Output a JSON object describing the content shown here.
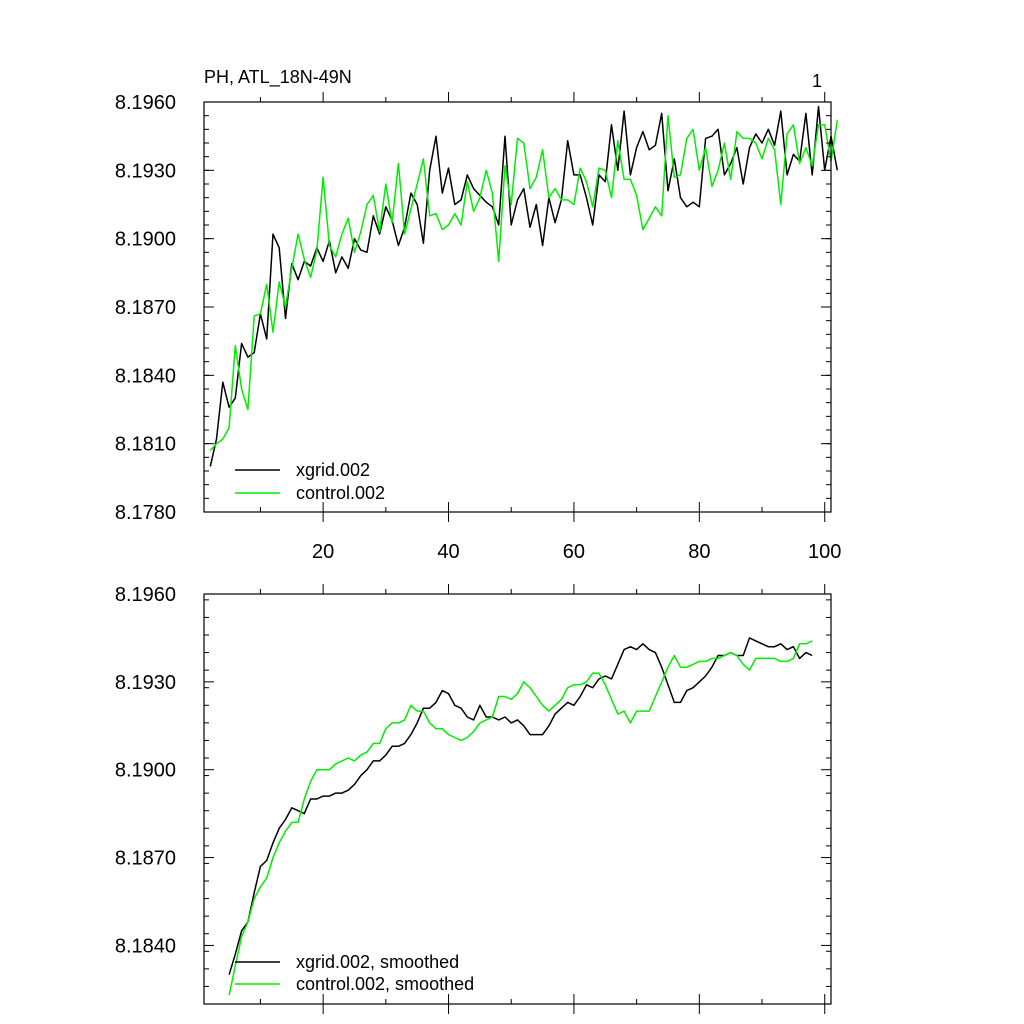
{
  "colors": {
    "series_black": "#000000",
    "series_green": "#00ee00",
    "frame": "#000000"
  },
  "chart_data": [
    {
      "type": "line",
      "title_left": "PH, ATL_18N-49N",
      "title_right": "1",
      "xlabel": "",
      "ylabel": "",
      "xlim": [
        1,
        101
      ],
      "ylim": [
        8.178,
        8.196
      ],
      "xticks": [
        20,
        40,
        60,
        80,
        100
      ],
      "xtick_labels": [
        "20",
        "40",
        "60",
        "80",
        "100"
      ],
      "yticks": [
        8.178,
        8.181,
        8.184,
        8.187,
        8.19,
        8.193,
        8.196
      ],
      "ytick_labels": [
        "8.1780",
        "8.1810",
        "8.1840",
        "8.1870",
        "8.1900",
        "8.1930",
        "8.1960"
      ],
      "grid": false,
      "legend_position": "bottom-left",
      "x_start": 2,
      "series": [
        {
          "name": "xgrid.002",
          "color": "#000000",
          "values": [
            8.18,
            8.1812,
            8.1837,
            8.1826,
            8.183,
            8.1854,
            8.1848,
            8.185,
            8.1867,
            8.1856,
            8.1902,
            8.1896,
            8.1865,
            8.1889,
            8.1882,
            8.189,
            8.1888,
            8.1896,
            8.189,
            8.1899,
            8.1885,
            8.1892,
            8.1887,
            8.19,
            8.1895,
            8.1894,
            8.191,
            8.1902,
            8.1914,
            8.1908,
            8.1897,
            8.1905,
            8.192,
            8.1915,
            8.1898,
            8.193,
            8.1945,
            8.192,
            8.1931,
            8.1915,
            8.1917,
            8.1928,
            8.1922,
            8.1919,
            8.1916,
            8.1914,
            8.1906,
            8.1945,
            8.1906,
            8.1917,
            8.1922,
            8.1905,
            8.1915,
            8.1897,
            8.1918,
            8.1907,
            8.1917,
            8.1943,
            8.1928,
            8.1928,
            8.1918,
            8.1906,
            8.1928,
            8.1925,
            8.195,
            8.193,
            8.1956,
            8.1928,
            8.194,
            8.1947,
            8.1939,
            8.1941,
            8.1955,
            8.1921,
            8.1935,
            8.1918,
            8.1914,
            8.1916,
            8.1914,
            8.1944,
            8.1945,
            8.1948,
            8.1928,
            8.1933,
            8.194,
            8.1924,
            8.194,
            8.1946,
            8.1942,
            8.1948,
            8.1941,
            8.1956,
            8.1928,
            8.1937,
            8.1934,
            8.1955,
            8.1928,
            8.1958,
            8.193,
            8.1945,
            8.193
          ]
        },
        {
          "name": "control.002",
          "color": "#00ee00",
          "values": [
            8.1807,
            8.181,
            8.1812,
            8.1817,
            8.1853,
            8.1834,
            8.1825,
            8.1866,
            8.1867,
            8.188,
            8.1859,
            8.1881,
            8.187,
            8.1887,
            8.1902,
            8.1891,
            8.1883,
            8.1895,
            8.1927,
            8.1897,
            8.1892,
            8.1902,
            8.1909,
            8.1894,
            8.1903,
            8.1915,
            8.1919,
            8.1903,
            8.1924,
            8.1907,
            8.1933,
            8.1902,
            8.1913,
            8.1924,
            8.1935,
            8.191,
            8.1911,
            8.1904,
            8.1906,
            8.1911,
            8.1906,
            8.1925,
            8.1912,
            8.1918,
            8.193,
            8.192,
            8.189,
            8.1932,
            8.1915,
            8.1944,
            8.1942,
            8.1922,
            8.1927,
            8.1939,
            8.1918,
            8.1922,
            8.1917,
            8.1917,
            8.1915,
            8.1931,
            8.1925,
            8.1914,
            8.1931,
            8.193,
            8.1918,
            8.1943,
            8.1926,
            8.1926,
            8.1919,
            8.1904,
            8.1909,
            8.1914,
            8.191,
            8.1954,
            8.1927,
            8.1928,
            8.1944,
            8.1948,
            8.193,
            8.194,
            8.1923,
            8.193,
            8.1942,
            8.1926,
            8.1947,
            8.1944,
            8.1944,
            8.1942,
            8.1935,
            8.1944,
            8.1939,
            8.1915,
            8.1946,
            8.195,
            8.1933,
            8.194,
            8.1932,
            8.195,
            8.195,
            8.1934,
            8.1952
          ]
        }
      ]
    },
    {
      "type": "line",
      "xlabel": "",
      "ylabel": "",
      "xlim": [
        1,
        101
      ],
      "ylim": [
        8.182,
        8.196
      ],
      "xticks": [
        20,
        40,
        60,
        80,
        100
      ],
      "xtick_labels": [],
      "yticks": [
        8.184,
        8.187,
        8.19,
        8.193,
        8.196
      ],
      "ytick_labels": [
        "8.1840",
        "8.1870",
        "8.1900",
        "8.1930",
        "8.1960"
      ],
      "grid": false,
      "legend_position": "bottom-left",
      "x_start": 5,
      "series": [
        {
          "name": "xgrid.002, smoothed",
          "color": "#000000",
          "values": [
            8.183,
            8.1837,
            8.1845,
            8.1848,
            8.1858,
            8.1867,
            8.1869,
            8.1875,
            8.188,
            8.1883,
            8.1887,
            8.1886,
            8.1885,
            8.189,
            8.189,
            8.1891,
            8.1891,
            8.1892,
            8.1892,
            8.1893,
            8.1895,
            8.1898,
            8.19,
            8.1903,
            8.1903,
            8.1905,
            8.1908,
            8.1908,
            8.1909,
            8.1912,
            8.1916,
            8.1921,
            8.1921,
            8.1923,
            8.1927,
            8.1926,
            8.1922,
            8.1921,
            8.1918,
            8.1917,
            8.1922,
            8.1918,
            8.1918,
            8.1917,
            8.1918,
            8.1916,
            8.1917,
            8.1915,
            8.1912,
            8.1912,
            8.1912,
            8.1915,
            8.1919,
            8.1921,
            8.1923,
            8.1922,
            8.1925,
            8.1929,
            8.1928,
            8.1931,
            8.1932,
            8.1931,
            8.1936,
            8.1941,
            8.1942,
            8.1941,
            8.1943,
            8.1941,
            8.194,
            8.1935,
            8.1929,
            8.1923,
            8.1923,
            8.1927,
            8.1928,
            8.193,
            8.1932,
            8.1935,
            8.1939,
            8.1939,
            8.194,
            8.1939,
            8.1939,
            8.1945,
            8.1944,
            8.1943,
            8.1942,
            8.1942,
            8.1943,
            8.1941,
            8.1942,
            8.1938,
            8.194,
            8.1939
          ]
        },
        {
          "name": "control.002, smoothed",
          "color": "#00ee00",
          "values": [
            8.1823,
            8.1833,
            8.1843,
            8.1848,
            8.1856,
            8.186,
            8.1863,
            8.187,
            8.1875,
            8.1879,
            8.1882,
            8.1882,
            8.189,
            8.1896,
            8.19,
            8.19,
            8.19,
            8.1902,
            8.1903,
            8.1904,
            8.1903,
            8.1905,
            8.1906,
            8.1909,
            8.1909,
            8.1914,
            8.1916,
            8.1916,
            8.1917,
            8.1922,
            8.192,
            8.192,
            8.1916,
            8.1914,
            8.1914,
            8.1912,
            8.1911,
            8.191,
            8.1911,
            8.1913,
            8.1916,
            8.1917,
            8.1918,
            8.1925,
            8.1925,
            8.1924,
            8.1926,
            8.193,
            8.1928,
            8.1925,
            8.1922,
            8.192,
            8.1922,
            8.1924,
            8.1928,
            8.1929,
            8.1929,
            8.193,
            8.1933,
            8.1933,
            8.1929,
            8.1924,
            8.1919,
            8.192,
            8.1916,
            8.192,
            8.192,
            8.192,
            8.1925,
            8.193,
            8.1935,
            8.1939,
            8.1935,
            8.1935,
            8.1936,
            8.1937,
            8.1937,
            8.1938,
            8.1938,
            8.1939,
            8.194,
            8.1939,
            8.1936,
            8.1934,
            8.1938,
            8.1938,
            8.1938,
            8.1938,
            8.1937,
            8.1937,
            8.1938,
            8.1943,
            8.1943,
            8.1944
          ]
        }
      ]
    }
  ]
}
